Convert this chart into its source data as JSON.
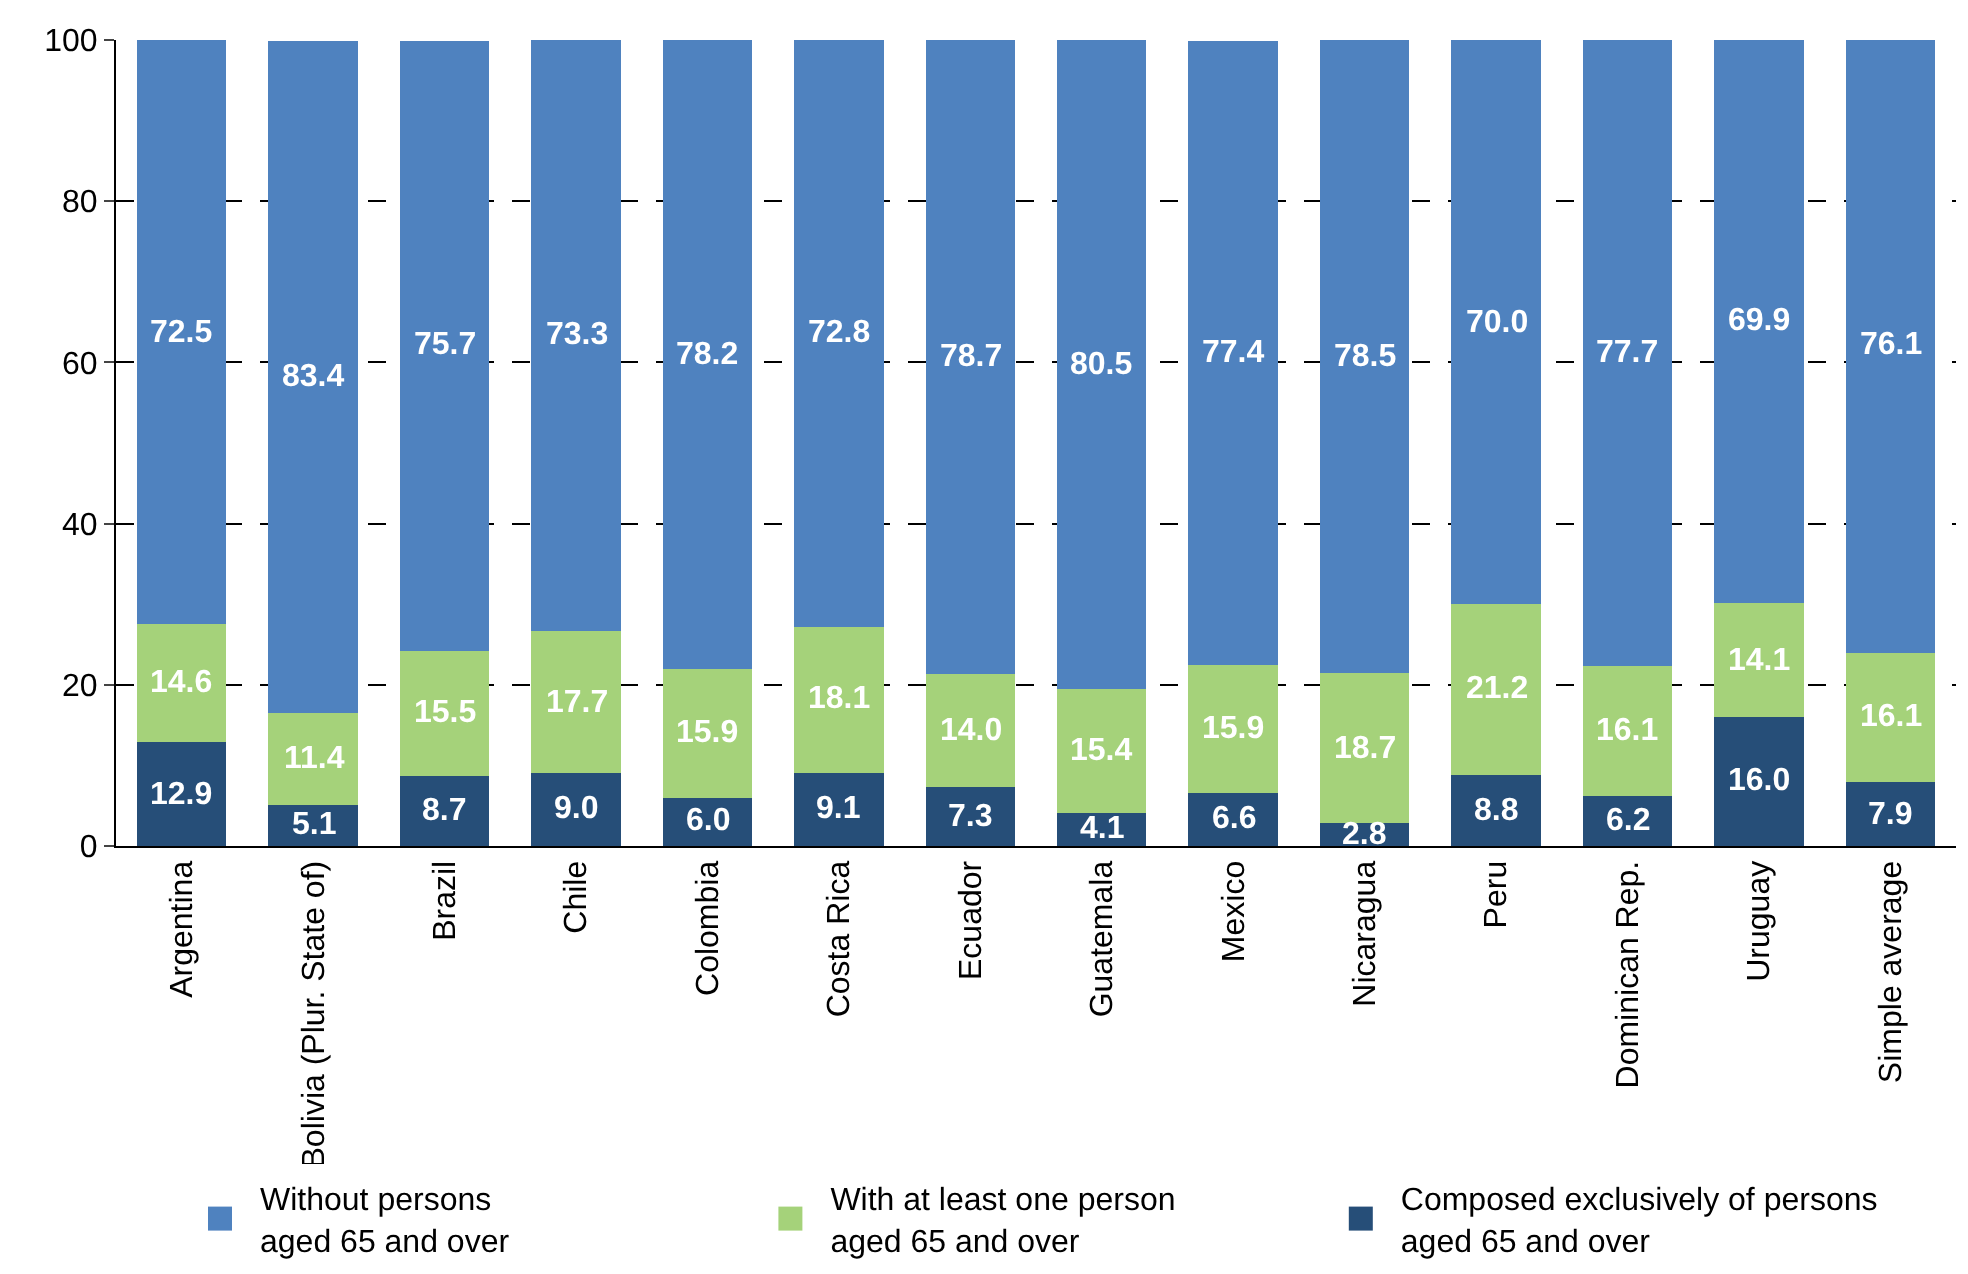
{
  "chart_data": {
    "type": "bar",
    "stacked": true,
    "categories": [
      "Argentina",
      "Bolivia (Plur. State of)",
      "Brazil",
      "Chile",
      "Colombia",
      "Costa Rica",
      "Ecuador",
      "Guatemala",
      "Mexico",
      "Nicaragua",
      "Peru",
      "Dominican Rep.",
      "Uruguay",
      "Simple average"
    ],
    "series": [
      {
        "name": "Composed exclusively of persons aged 65 and over",
        "color": "#264e78",
        "values": [
          12.9,
          5.1,
          8.7,
          9.0,
          6.0,
          9.1,
          7.3,
          4.1,
          6.6,
          2.8,
          8.8,
          6.2,
          16.0,
          7.9
        ],
        "value_labels": [
          "12.9",
          "5.1",
          "8.7",
          "9.0",
          "6.0",
          "9.1",
          "7.3",
          "4.1",
          "6.6",
          "2.8",
          "8.8",
          "6.2",
          "16.0",
          "7.9"
        ]
      },
      {
        "name": "With at least one person aged 65 and over",
        "color": "#a5d27a",
        "values": [
          14.6,
          11.4,
          15.5,
          17.7,
          15.9,
          18.1,
          14.0,
          15.4,
          15.9,
          18.7,
          21.2,
          16.1,
          14.1,
          16.1
        ],
        "value_labels": [
          "14.6",
          "11.4",
          "15.5",
          "17.7",
          "15.9",
          "18.1",
          "14.0",
          "15.4",
          "15.9",
          "18.7",
          "21.2",
          "16.1",
          "14.1",
          "16.1"
        ]
      },
      {
        "name": "Without persons aged 65 and over",
        "color": "#4f82bf",
        "values": [
          72.5,
          83.4,
          75.7,
          73.3,
          78.2,
          72.8,
          78.7,
          80.5,
          77.4,
          78.5,
          70.0,
          77.7,
          69.9,
          76.1
        ],
        "value_labels": [
          "72.5",
          "83.4",
          "75.7",
          "73.3",
          "78.2",
          "72.8",
          "78.7",
          "80.5",
          "77.4",
          "78.5",
          "70.0",
          "77.7",
          "69.9",
          "76.1"
        ]
      }
    ],
    "ylim": [
      0,
      100
    ],
    "yticks": [
      0,
      20,
      40,
      60,
      80,
      100
    ],
    "grid": "y",
    "legend": "bottom"
  }
}
